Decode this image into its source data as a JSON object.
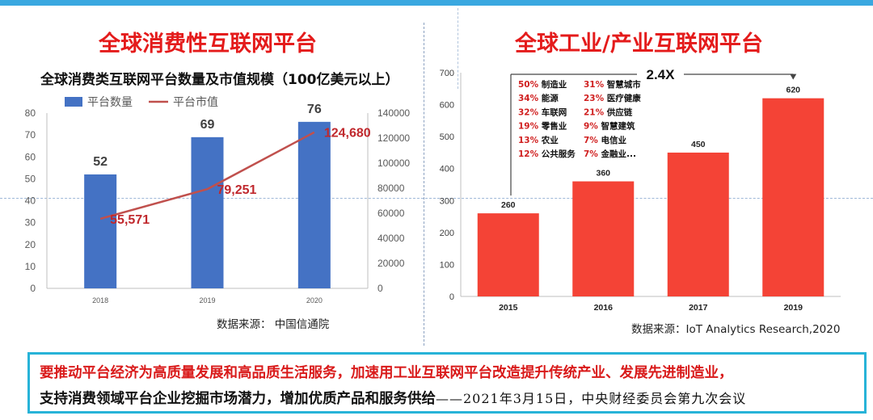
{
  "left_title": "全球消费性互联网平台",
  "right_title": "全球工业/产业互联网平台",
  "left_subtitle": "全球消费类互联网平台数量及市值规模（100亿美元以上）",
  "left_source": "数据来源：  中国信通院",
  "right_source": "数据来源：IoT Analytics Research,2020",
  "bottom": {
    "line1": "要推动平台经济为高质量发展和高品质生活服务，加速用工业互联网平台改造提升传统产业、发展先进制造业，",
    "line2": "支持消费领域平台企业挖掘市场潜力，增加优质产品和服务供给",
    "line2_cite": "——2021年3月15日，中央财经委员会第九次会议"
  },
  "chart_data": [
    {
      "type": "bar",
      "categories": [
        "2018",
        "2019",
        "2020"
      ],
      "series": [
        {
          "name": "平台数量",
          "values": [
            52,
            69,
            76
          ],
          "labels": [
            "52",
            "69",
            "76"
          ],
          "axis": "left",
          "color": "#4472c4"
        },
        {
          "name": "平台市值",
          "type": "line",
          "values": [
            55571,
            79251,
            124680
          ],
          "labels": [
            "55,571",
            "79,251",
            "124,680"
          ],
          "axis": "right",
          "color": "#c0504d"
        }
      ],
      "y_left": {
        "min": 0,
        "max": 80,
        "ticks": [
          "0",
          "10",
          "20",
          "30",
          "40",
          "50",
          "60",
          "70",
          "80"
        ]
      },
      "y_right": {
        "min": 0,
        "max": 140000,
        "ticks": [
          "0",
          "20000",
          "40000",
          "60000",
          "80000",
          "100000",
          "120000",
          "140000"
        ]
      },
      "legend_position": "top-left",
      "grid": false
    },
    {
      "type": "bar",
      "categories": [
        "2015",
        "2016",
        "2017",
        "2019"
      ],
      "values": [
        260,
        360,
        450,
        620
      ],
      "value_labels": [
        "260",
        "360",
        "450",
        "620"
      ],
      "color": "#f44336",
      "y": {
        "min": 0,
        "max": 700,
        "ticks": [
          "0",
          "100",
          "200",
          "300",
          "400",
          "500",
          "600",
          "700"
        ]
      },
      "grid": false,
      "annotation": "2.4X",
      "breakdown": [
        {
          "pct": "50%",
          "name": "制造业"
        },
        {
          "pct": "34%",
          "name": "能源"
        },
        {
          "pct": "32%",
          "name": "车联网"
        },
        {
          "pct": "19%",
          "name": "零售业"
        },
        {
          "pct": "13%",
          "name": "农业"
        },
        {
          "pct": "12%",
          "name": "公共服务"
        },
        {
          "pct": "31%",
          "name": "智慧城市"
        },
        {
          "pct": "23%",
          "name": "医疗健康"
        },
        {
          "pct": "21%",
          "name": "供应链"
        },
        {
          "pct": "9%",
          "name": "智慧建筑"
        },
        {
          "pct": "7%",
          "name": "电信业"
        },
        {
          "pct": "7%",
          "name": "金融业..."
        }
      ]
    }
  ]
}
